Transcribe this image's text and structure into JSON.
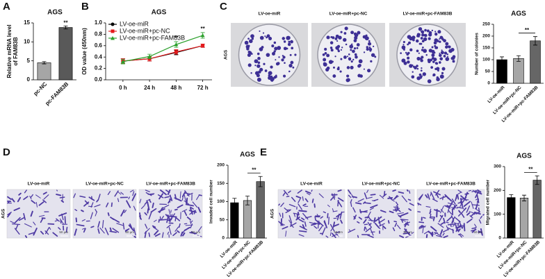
{
  "panels": {
    "labels": [
      "A",
      "B",
      "C",
      "D",
      "E"
    ]
  },
  "chart_data": [
    {
      "type": "bar",
      "title": "AGS",
      "ylabel": [
        "Relative mRNA level",
        "of FAM83B"
      ],
      "categories": [
        "pc-NC",
        "pc-FAM83B"
      ],
      "values": [
        4.5,
        13.8
      ],
      "errors": [
        0.3,
        0.4
      ],
      "colors": [
        "#a6a6a6",
        "#595959"
      ],
      "significance": [
        null,
        "**"
      ],
      "ylim": [
        0,
        15
      ],
      "yticks": [
        0,
        5,
        10,
        15
      ]
    },
    {
      "type": "line",
      "title": "AGS",
      "ylabel": "OD value (450nm)",
      "categories": [
        "0 h",
        "24 h",
        "48 h",
        "72 h"
      ],
      "series": [
        {
          "name": "LV-oe-miR",
          "color": "#000000",
          "marker": "circle",
          "values": [
            0.33,
            0.37,
            0.48,
            0.6
          ],
          "errors": [
            0.04,
            0.04,
            0.04,
            0.03
          ]
        },
        {
          "name": "LV-oe-miR+pc-NC",
          "color": "#e41a1c",
          "marker": "square",
          "values": [
            0.33,
            0.37,
            0.49,
            0.6
          ],
          "errors": [
            0.04,
            0.04,
            0.04,
            0.03
          ]
        },
        {
          "name": "LV-oe-miR+pc-FAM83B",
          "color": "#2ca02c",
          "marker": "triangle",
          "values": [
            0.32,
            0.41,
            0.62,
            0.78
          ],
          "errors": [
            0.04,
            0.04,
            0.05,
            0.05
          ],
          "significance": [
            null,
            null,
            "**",
            "**"
          ]
        }
      ],
      "ylim": [
        0,
        1
      ],
      "yticks": [
        {
          "value": 0,
          "label": "0.0"
        },
        {
          "value": 0.2,
          "label": "0.2"
        },
        {
          "value": 0.4,
          "label": "0.4"
        },
        {
          "value": 0.6,
          "label": "0.6"
        },
        {
          "value": 0.8,
          "label": "0.8"
        },
        {
          "value": 1,
          "label": "1.0"
        }
      ]
    },
    {
      "type": "bar",
      "title": "AGS",
      "ylabel": "Number of colonies",
      "images": {
        "kind": "plate",
        "row_label": "AGS",
        "labels": [
          "LV-oe-miR",
          "LV-oe-miR+pc-NC",
          "LV-oe-miR+pc-FAM83B"
        ]
      },
      "categories": [
        "LV-oe-miR",
        "LV-oe-miR+pc-NC",
        "LV-oe-miR+pc-FAM83B"
      ],
      "values": [
        100,
        105,
        180
      ],
      "errors": [
        12,
        12,
        18
      ],
      "colors": [
        "#000000",
        "#a6a6a6",
        "#666666"
      ],
      "significance": [
        null,
        null,
        "**"
      ],
      "bracket": true,
      "ylim": [
        0,
        250
      ],
      "yticks": [
        0,
        50,
        100,
        150,
        200,
        250
      ]
    },
    {
      "type": "bar",
      "title": "AGS",
      "ylabel": "Invaded cell number",
      "images": {
        "kind": "cells",
        "row_label": "AGS",
        "labels": [
          "LV-oe-miR",
          "LV-oe-miR+pc-NC",
          "LV-oe-miR+pc-FAM83B"
        ],
        "scale_bar": "50 μm"
      },
      "categories": [
        "LV-oe-miR",
        "LV-oe-miR+pc-NC",
        "LV-oe-miR+pc-FAM83B"
      ],
      "values": [
        97,
        103,
        155
      ],
      "errors": [
        12,
        12,
        14
      ],
      "colors": [
        "#000000",
        "#a6a6a6",
        "#666666"
      ],
      "significance": [
        null,
        null,
        "**"
      ],
      "bracket": true,
      "ylim": [
        0,
        200
      ],
      "yticks": [
        0,
        50,
        100,
        150,
        200
      ]
    },
    {
      "type": "bar",
      "title": "AGS",
      "ylabel": "Migrated cell number",
      "images": {
        "kind": "cells",
        "row_label": "AGS",
        "labels": [
          "LV-oe-miR",
          "LV-oe-miR+pc-NC",
          "LV-oe-miR+pc-FAM83B"
        ],
        "scale_bar": "50 μm"
      },
      "categories": [
        "LV-oe-miR",
        "LV-oe-miR+pc-NC",
        "LV-oe-miR+pc-FAM83B"
      ],
      "values": [
        170,
        168,
        243
      ],
      "errors": [
        12,
        12,
        18
      ],
      "colors": [
        "#000000",
        "#a6a6a6",
        "#666666"
      ],
      "significance": [
        null,
        null,
        "**"
      ],
      "bracket": true,
      "ylim": [
        0,
        300
      ],
      "yticks": [
        0,
        100,
        200,
        300
      ]
    }
  ]
}
